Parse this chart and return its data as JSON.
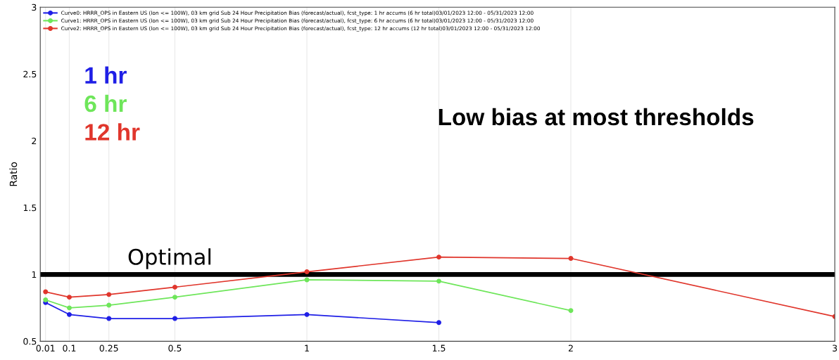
{
  "chart_data": {
    "type": "line",
    "ylabel": "Ratio",
    "x": [
      0.01,
      0.1,
      0.25,
      0.5,
      1,
      1.5,
      2,
      3
    ],
    "series": [
      {
        "name": "Curve0: HRRR_OPS in Eastern US (lon <= 100W), 03 km grid Sub 24 Hour Precipitation Bias (forecast/actual), fcst_type: 1 hr accums (6 hr total)03/01/2023 12:00 - 05/31/2023 12:00",
        "color": "#1f1fe6",
        "values": [
          0.79,
          0.7,
          0.67,
          0.67,
          0.7,
          0.64,
          null,
          null
        ]
      },
      {
        "name": "Curve1: HRRR_OPS in Eastern US (lon <= 100W), 03 km grid Sub 24 Hour Precipitation Bias (forecast/actual), fcst_type: 6 hr accums (6 hr total)03/01/2023 12:00 - 05/31/2023 12:00",
        "color": "#6ee65a",
        "values": [
          0.81,
          0.75,
          0.77,
          0.83,
          0.96,
          0.95,
          0.73,
          null
        ]
      },
      {
        "name": "Curve2: HRRR_OPS in Eastern US (lon <= 100W), 03 km grid Sub 24 Hour Precipitation Bias (forecast/actual), fcst_type: 12 hr accums (12 hr total)03/01/2023 12:00 - 05/31/2023 12:00",
        "color": "#e0362c",
        "values": [
          0.87,
          0.83,
          0.85,
          0.905,
          1.02,
          1.13,
          1.12,
          0.685
        ]
      }
    ],
    "xlim": [
      -0.01,
      3
    ],
    "xticks": [
      0.01,
      0.1,
      0.25,
      0.5,
      1,
      1.5,
      2,
      3
    ],
    "ylim": [
      0.5,
      3
    ],
    "yticks": [
      0.5,
      1,
      1.5,
      2,
      2.5,
      3
    ],
    "ref_lines": [
      {
        "axis": "y",
        "value": 1,
        "label": "Optimal",
        "color": "#000000"
      }
    ],
    "annotations": [
      "1 hr",
      "6 hr",
      "12 hr",
      "Low bias at most thresholds"
    ],
    "grid": "x",
    "legend": "top left",
    "marker": "circle",
    "line_style": "solid"
  }
}
